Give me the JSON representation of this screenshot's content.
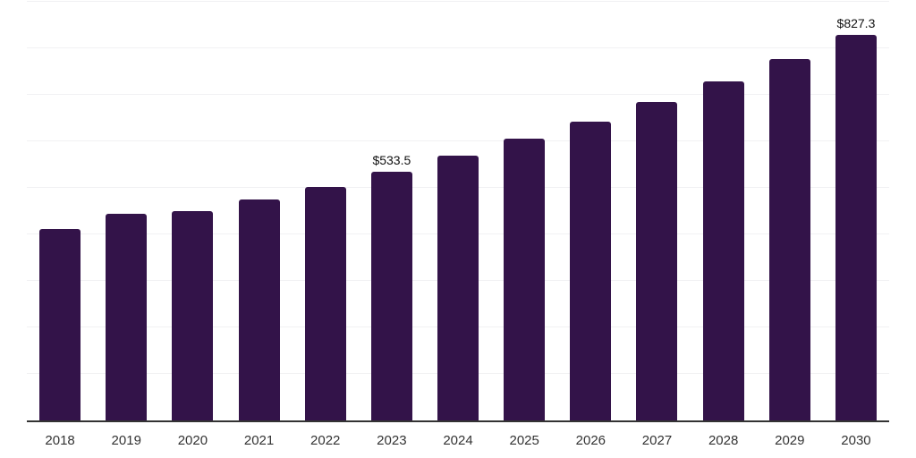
{
  "chart_data": {
    "type": "bar",
    "title": "",
    "xlabel": "",
    "ylabel": "",
    "categories": [
      "2018",
      "2019",
      "2020",
      "2021",
      "2022",
      "2023",
      "2024",
      "2025",
      "2026",
      "2027",
      "2028",
      "2029",
      "2030"
    ],
    "values": [
      411,
      443,
      450,
      475,
      502,
      533.5,
      569,
      605,
      642,
      684,
      729,
      777,
      827.3
    ],
    "data_labels": [
      "",
      "",
      "",
      "",
      "",
      "$533.5",
      "",
      "",
      "",
      "",
      "",
      "",
      "$827.3"
    ],
    "labeled_points": [
      {
        "category": "2023",
        "label": "$533.5",
        "value": 533.5
      },
      {
        "category": "2030",
        "label": "$827.3",
        "value": 827.3
      }
    ],
    "ylim": [
      0,
      903
    ],
    "gridline_step": 100,
    "grid": true,
    "legend": false,
    "colors": {
      "bar": "#331349",
      "axis": "#333333",
      "gridline": "#f1f1f3",
      "tick_label": "#333333",
      "data_label": "#111111",
      "background": "#ffffff"
    }
  }
}
